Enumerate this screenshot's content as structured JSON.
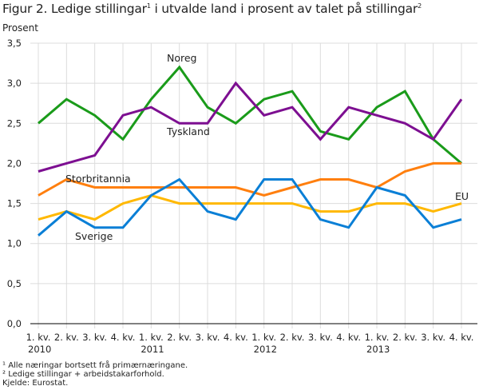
{
  "title": {
    "text": "Figur 2. Ledige stillingar",
    "sup1": "1",
    "mid": " i utvalde land i prosent av talet på stillingar",
    "sup2": "2"
  },
  "footnotes": [
    "¹ Alle næringar bortsett frå primærnæringane.",
    "² Ledige stillingar + arbeidstakarforhold.",
    "Kjelde: Eurostat."
  ],
  "chart_data": {
    "type": "line",
    "title": "Figur 2. Ledige stillingar¹ i utvalde land i prosent av talet på stillingar²",
    "ylabel": "Prosent",
    "xlabel": "",
    "ylim": [
      0,
      3.5
    ],
    "yticks": [
      "0,0",
      "0,5",
      "1,0",
      "1,5",
      "2,0",
      "2,5",
      "3,0",
      "3,5"
    ],
    "grid": true,
    "categories": [
      "1. kv. 2010",
      "2. kv.",
      "3. kv.",
      "4. kv.",
      "1. kv. 2011",
      "2. kv.",
      "3. kv.",
      "4. kv.",
      "1. kv. 2012",
      "2. kv.",
      "3. kv.",
      "4. kv.",
      "1. kv. 2013",
      "2. kv.",
      "3. kv.",
      "4. kv."
    ],
    "xtick_quarters": [
      "1. kv.",
      "2. kv.",
      "3. kv.",
      "4. kv.",
      "1. kv.",
      "2. kv.",
      "3. kv.",
      "4. kv.",
      "1. kv.",
      "2. kv.",
      "3. kv.",
      "4. kv.",
      "1. kv.",
      "2. kv.",
      "3. kv.",
      "4. kv."
    ],
    "xtick_years": [
      "2010",
      "",
      "",
      "",
      "2011",
      "",
      "",
      "",
      "2012",
      "",
      "",
      "",
      "2013",
      "",
      "",
      ""
    ],
    "series": [
      {
        "name": "Noreg",
        "color": "#1a9b1a",
        "values": [
          2.5,
          2.8,
          2.6,
          2.3,
          2.8,
          3.2,
          2.7,
          2.5,
          2.8,
          2.9,
          2.4,
          2.3,
          2.7,
          2.9,
          2.3,
          2.0
        ]
      },
      {
        "name": "Tyskland",
        "color": "#7d0f91",
        "values": [
          1.9,
          2.0,
          2.1,
          2.6,
          2.7,
          2.5,
          2.5,
          3.0,
          2.6,
          2.7,
          2.3,
          2.7,
          2.6,
          2.5,
          2.3,
          2.8
        ]
      },
      {
        "name": "Storbritannia",
        "color": "#ff7f0e",
        "values": [
          1.6,
          1.8,
          1.7,
          1.7,
          1.7,
          1.7,
          1.7,
          1.7,
          1.6,
          1.7,
          1.8,
          1.8,
          1.7,
          1.9,
          2.0,
          2.0
        ]
      },
      {
        "name": "EU",
        "color": "#ffb800",
        "values": [
          1.3,
          1.4,
          1.3,
          1.5,
          1.6,
          1.5,
          1.5,
          1.5,
          1.5,
          1.5,
          1.4,
          1.4,
          1.5,
          1.5,
          1.4,
          1.5
        ]
      },
      {
        "name": "Sverige",
        "color": "#0a7fd6",
        "values": [
          1.1,
          1.4,
          1.2,
          1.2,
          1.6,
          1.8,
          1.4,
          1.3,
          1.8,
          1.8,
          1.3,
          1.2,
          1.7,
          1.6,
          1.2,
          1.3
        ]
      }
    ]
  }
}
